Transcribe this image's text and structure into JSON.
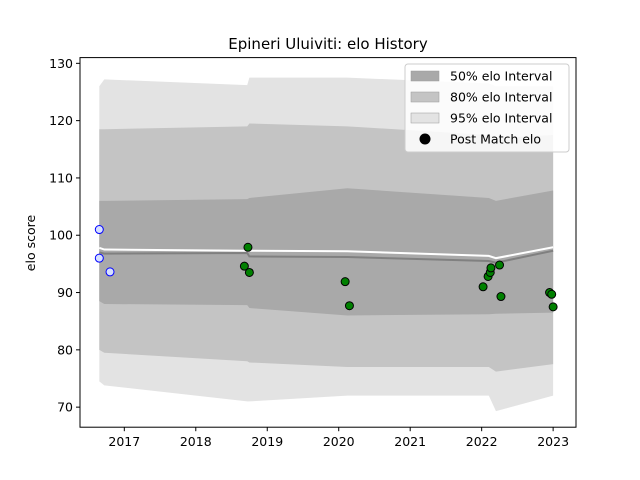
{
  "chart_data": {
    "type": "line",
    "title": "Epineri Uluiviti: elo History",
    "xlabel": "",
    "ylabel": "elo score",
    "xlim": [
      2016.38,
      2023.32
    ],
    "ylim": [
      66.5,
      131.0
    ],
    "x_ticks": [
      {
        "value": 2017,
        "label": "2017"
      },
      {
        "value": 2018,
        "label": "2018"
      },
      {
        "value": 2019,
        "label": "2019"
      },
      {
        "value": 2020,
        "label": "2020"
      },
      {
        "value": 2021,
        "label": "2021"
      },
      {
        "value": 2022,
        "label": "2022"
      },
      {
        "value": 2023,
        "label": "2023"
      }
    ],
    "y_ticks": [
      70,
      80,
      90,
      100,
      110,
      120,
      130
    ],
    "grid": false,
    "legend_position": "top-right",
    "legend": [
      {
        "label": "50% elo Interval",
        "kind": "band",
        "color": "#a9a9a9"
      },
      {
        "label": "80% elo Interval",
        "kind": "band",
        "color": "#c4c4c4"
      },
      {
        "label": "95% elo Interval",
        "kind": "band",
        "color": "#e3e3e3"
      },
      {
        "label": "Post Match elo",
        "kind": "marker",
        "color": "#000000"
      }
    ],
    "band_x": [
      2016.65,
      2016.72,
      2018.72,
      2018.75,
      2020.12,
      2022.1,
      2022.2,
      2023.0
    ],
    "median": [
      97.0,
      96.8,
      96.9,
      96.3,
      96.2,
      95.5,
      95.2,
      97.3
    ],
    "mean": [
      97.8,
      97.5,
      97.3,
      97.3,
      97.2,
      96.4,
      96.0,
      97.9
    ],
    "band50": {
      "lower": [
        88.5,
        88.0,
        87.8,
        87.3,
        86.0,
        86.2,
        86.3,
        86.5
      ],
      "upper": [
        106.0,
        106.0,
        106.3,
        106.5,
        108.2,
        106.5,
        106.0,
        107.8
      ]
    },
    "band80": {
      "lower": [
        80.0,
        79.5,
        78.0,
        77.8,
        77.0,
        77.0,
        76.2,
        77.5
      ],
      "upper": [
        118.5,
        118.5,
        119.0,
        119.5,
        119.0,
        117.5,
        117.0,
        117.5
      ]
    },
    "band95": {
      "lower": [
        74.5,
        73.8,
        71.0,
        71.0,
        72.0,
        72.0,
        69.3,
        72.0
      ],
      "upper": [
        126.0,
        127.2,
        126.2,
        127.5,
        127.5,
        126.5,
        126.0,
        126.0
      ]
    },
    "series": [
      {
        "name": "Post Match elo",
        "points": [
          {
            "x": 2016.65,
            "y": 101.0,
            "style": "initial"
          },
          {
            "x": 2016.65,
            "y": 96.0,
            "style": "initial"
          },
          {
            "x": 2016.8,
            "y": 93.6,
            "style": "initial"
          },
          {
            "x": 2018.73,
            "y": 97.9,
            "style": "match"
          },
          {
            "x": 2018.68,
            "y": 94.6,
            "style": "match"
          },
          {
            "x": 2018.75,
            "y": 93.5,
            "style": "match"
          },
          {
            "x": 2020.09,
            "y": 91.9,
            "style": "match"
          },
          {
            "x": 2020.15,
            "y": 87.7,
            "style": "match"
          },
          {
            "x": 2022.02,
            "y": 91.0,
            "style": "match"
          },
          {
            "x": 2022.09,
            "y": 92.8,
            "style": "match"
          },
          {
            "x": 2022.12,
            "y": 93.5,
            "style": "match"
          },
          {
            "x": 2022.13,
            "y": 94.3,
            "style": "match"
          },
          {
            "x": 2022.25,
            "y": 94.8,
            "style": "match"
          },
          {
            "x": 2022.27,
            "y": 89.3,
            "style": "match"
          },
          {
            "x": 2022.95,
            "y": 90.0,
            "style": "match"
          },
          {
            "x": 2022.98,
            "y": 89.7,
            "style": "match"
          },
          {
            "x": 2023.0,
            "y": 87.5,
            "style": "match"
          }
        ]
      }
    ],
    "colors": {
      "band50": "#a9a9a9",
      "band80": "#c4c4c4",
      "band95": "#e3e3e3",
      "median_line": "#808080",
      "mean_line": "#ffffff",
      "match_marker": "#008000",
      "initial_marker_face": "#d6e0ff",
      "initial_marker_edge": "#0000ff"
    }
  }
}
